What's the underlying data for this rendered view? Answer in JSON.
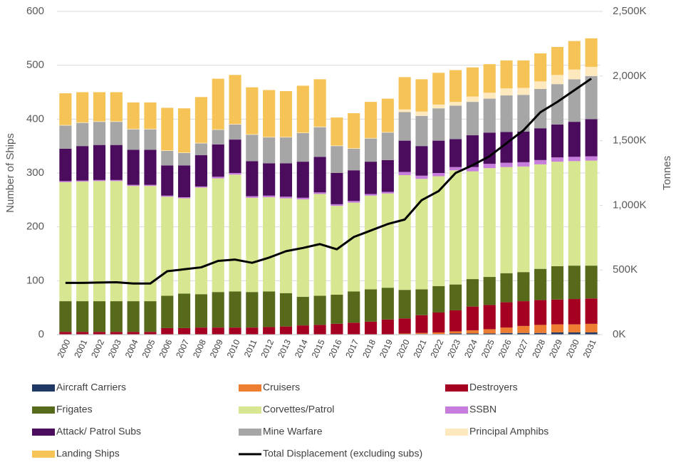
{
  "chart_data": {
    "type": "bar",
    "stacked": true,
    "ylabel": "Number of Ships",
    "y2label": "Tonnes",
    "categories": [
      "2000",
      "2001",
      "2002",
      "2003",
      "2004",
      "2005",
      "2006",
      "2007",
      "2008",
      "2009",
      "2010",
      "2011",
      "2012",
      "2013",
      "2014",
      "2015",
      "2016",
      "2017",
      "2018",
      "2019",
      "2020",
      "2021",
      "2022",
      "2023",
      "2024",
      "2025",
      "2026",
      "2027",
      "2028",
      "2029",
      "2030",
      "2031"
    ],
    "ylim": [
      0,
      600
    ],
    "yticks": [
      0,
      100,
      200,
      300,
      400,
      500,
      600
    ],
    "y2lim": [
      0,
      2500000
    ],
    "y2ticks": [
      {
        "value": 0,
        "label": "0K"
      },
      {
        "value": 500000,
        "label": "500K"
      },
      {
        "value": 1000000,
        "label": "1,000K"
      },
      {
        "value": 1500000,
        "label": "1,500K"
      },
      {
        "value": 2000000,
        "label": "2,000K"
      },
      {
        "value": 2500000,
        "label": "2,500K"
      }
    ],
    "grid": true,
    "series": [
      {
        "name": "Aircraft Carriers",
        "color": "#1f3864",
        "values": [
          0,
          0,
          0,
          0,
          0,
          0,
          0,
          0,
          0,
          0,
          0,
          0,
          0,
          0,
          0,
          0,
          0,
          0,
          0,
          0,
          1,
          1,
          1,
          2,
          2,
          2,
          3,
          3,
          3,
          4,
          4,
          4
        ]
      },
      {
        "name": "Cruisers",
        "color": "#ed7d31",
        "values": [
          0,
          0,
          0,
          0,
          0,
          0,
          0,
          0,
          0,
          0,
          0,
          0,
          0,
          0,
          0,
          0,
          0,
          0,
          0,
          0,
          1,
          2,
          3,
          4,
          6,
          8,
          10,
          13,
          15,
          15,
          15,
          16
        ]
      },
      {
        "name": "Destroyers",
        "color": "#a50021",
        "values": [
          5,
          5,
          5,
          5,
          5,
          5,
          12,
          12,
          13,
          13,
          13,
          13,
          14,
          15,
          17,
          18,
          20,
          22,
          24,
          28,
          28,
          33,
          37,
          39,
          44,
          45,
          47,
          46,
          46,
          46,
          47,
          47
        ]
      },
      {
        "name": "Frigates",
        "color": "#576a1c",
        "values": [
          57,
          57,
          57,
          57,
          57,
          57,
          60,
          64,
          62,
          66,
          67,
          66,
          66,
          62,
          53,
          54,
          54,
          58,
          60,
          59,
          53,
          48,
          49,
          48,
          51,
          52,
          54,
          54,
          58,
          62,
          62,
          61
        ]
      },
      {
        "name": "Corvettes/Patrol",
        "color": "#d7e690",
        "values": [
          221,
          222,
          223,
          223,
          214,
          214,
          184,
          177,
          198,
          211,
          217,
          175,
          175,
          176,
          181,
          189,
          165,
          165,
          174,
          175,
          213,
          205,
          204,
          212,
          200,
          202,
          197,
          196,
          194,
          194,
          194,
          195
        ]
      },
      {
        "name": "SSBN",
        "color": "#c77ddb",
        "values": [
          2,
          2,
          2,
          2,
          2,
          2,
          2,
          2,
          2,
          3,
          3,
          3,
          3,
          3,
          3,
          3,
          3,
          3,
          3,
          3,
          6,
          6,
          6,
          6,
          8,
          8,
          8,
          8,
          8,
          8,
          8,
          8
        ]
      },
      {
        "name": "Attack/ Patrol Subs",
        "color": "#4b0c5e",
        "values": [
          60,
          64,
          65,
          65,
          65,
          65,
          56,
          59,
          58,
          60,
          62,
          65,
          60,
          62,
          67,
          66,
          58,
          57,
          60,
          59,
          58,
          55,
          60,
          52,
          59,
          58,
          57,
          57,
          59,
          61,
          65,
          69
        ]
      },
      {
        "name": "Mine Warfare",
        "color": "#a6a6a6",
        "values": [
          43,
          43,
          43,
          43,
          38,
          38,
          27,
          23,
          22,
          27,
          28,
          49,
          48,
          48,
          53,
          55,
          50,
          40,
          43,
          51,
          53,
          56,
          60,
          62,
          62,
          63,
          68,
          68,
          73,
          75,
          79,
          80
        ]
      },
      {
        "name": "Principal Amphibs",
        "color": "#fde9bd",
        "values": [
          1,
          1,
          1,
          1,
          1,
          1,
          1,
          1,
          1,
          1,
          1,
          1,
          1,
          1,
          1,
          1,
          1,
          1,
          1,
          1,
          5,
          8,
          7,
          7,
          10,
          11,
          13,
          13,
          14,
          17,
          18,
          17
        ]
      },
      {
        "name": "Landing Ships",
        "color": "#f6c456",
        "values": [
          59,
          56,
          54,
          54,
          49,
          49,
          79,
          82,
          85,
          94,
          91,
          87,
          87,
          85,
          87,
          88,
          52,
          65,
          67,
          62,
          60,
          60,
          59,
          59,
          54,
          53,
          52,
          51,
          52,
          52,
          53,
          53
        ]
      },
      {
        "name": "Total Displacement (excluding subs)",
        "color": "#000000",
        "type": "line",
        "axis": "y2",
        "values": [
          400000,
          400000,
          403000,
          405000,
          395000,
          395000,
          490000,
          505000,
          520000,
          570000,
          580000,
          555000,
          595000,
          645000,
          670000,
          700000,
          660000,
          755000,
          805000,
          855000,
          890000,
          1040000,
          1110000,
          1250000,
          1310000,
          1380000,
          1480000,
          1580000,
          1720000,
          1800000,
          1890000,
          1980000
        ]
      }
    ]
  }
}
